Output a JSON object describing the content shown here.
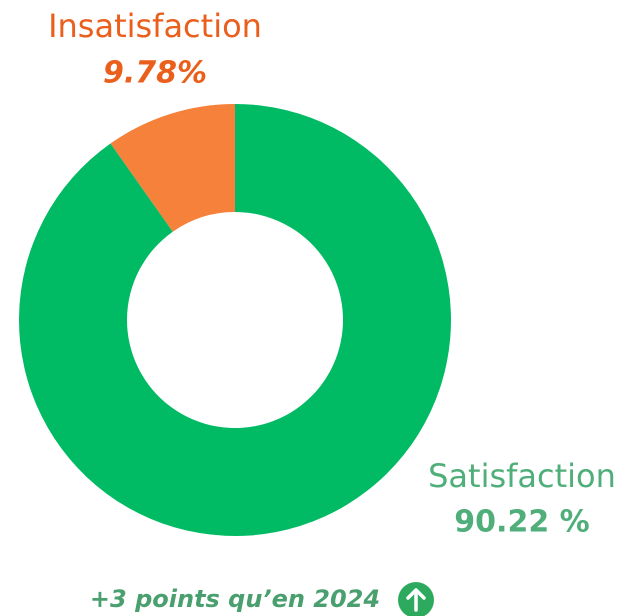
{
  "chart_data": {
    "type": "donut",
    "categories": [
      "Insatisfaction",
      "Satisfaction"
    ],
    "values": [
      9.78,
      90.22
    ],
    "value_labels": [
      "9.78%",
      "90.22 %"
    ],
    "colors": [
      "#f5813a",
      "#00bb63"
    ],
    "label_colors": [
      "#ea5f1c",
      "#4fae79"
    ],
    "annotation": "+3 points qu’en 2024"
  }
}
